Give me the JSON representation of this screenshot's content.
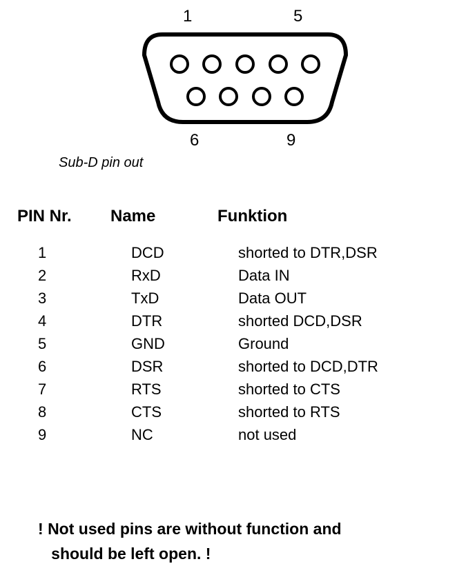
{
  "connector": {
    "top_left_label": "1",
    "top_right_label": "5",
    "bottom_left_label": "6",
    "bottom_right_label": "9",
    "caption": "Sub-D pin out",
    "outline_color": "#000000",
    "outline_width": 6,
    "pin_radius": 12,
    "pin_stroke_width": 4,
    "top_row_pins": 5,
    "bottom_row_pins": 4
  },
  "table": {
    "headers": {
      "pin": "PIN Nr.",
      "name": "Name",
      "func": "Funktion"
    },
    "rows": [
      {
        "pin": "1",
        "name": "DCD",
        "func": "shorted to DTR,DSR"
      },
      {
        "pin": "2",
        "name": "RxD",
        "func": "Data IN"
      },
      {
        "pin": "3",
        "name": "TxD",
        "func": "Data OUT"
      },
      {
        "pin": "4",
        "name": "DTR",
        "func": "shorted DCD,DSR"
      },
      {
        "pin": "5",
        "name": "GND",
        "func": "Ground"
      },
      {
        "pin": "6",
        "name": "DSR",
        "func": "shorted to DCD,DTR"
      },
      {
        "pin": "7",
        "name": "RTS",
        "func": "shorted to CTS"
      },
      {
        "pin": "8",
        "name": "CTS",
        "func": "shorted to RTS"
      },
      {
        "pin": "9",
        "name": "NC",
        "func": "not used"
      }
    ]
  },
  "note": {
    "exclaim": "!",
    "line1": "Not used pins are without function and",
    "line2": "should be left open."
  },
  "style": {
    "text_color": "#000000",
    "background_color": "#ffffff",
    "body_fontsize": 22,
    "header_fontsize": 24,
    "caption_fontsize": 20,
    "note_fontsize": 23
  }
}
